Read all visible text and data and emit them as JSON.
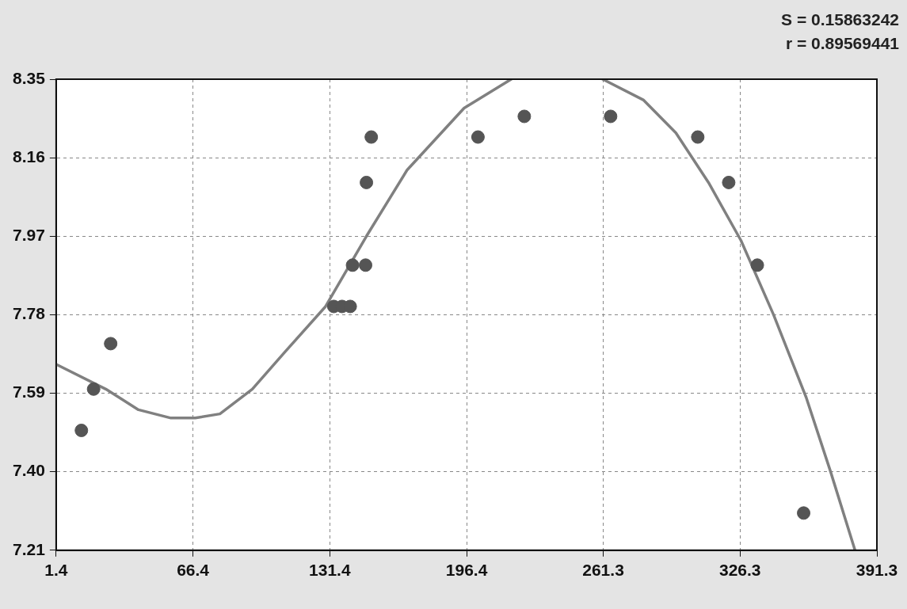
{
  "chart_data": {
    "type": "scatter",
    "annotations": [
      "S = 0.15863242",
      "r = 0.89569441"
    ],
    "xlim": [
      1.4,
      391.3
    ],
    "xticks": [
      1.4,
      66.4,
      131.4,
      196.4,
      261.3,
      326.3,
      391.3
    ],
    "ylim": [
      7.21,
      8.35
    ],
    "yticks": [
      7.21,
      {
        "value": 7.4,
        "label": "7.40"
      },
      7.59,
      7.78,
      7.97,
      8.16,
      8.35
    ],
    "grid": true,
    "series": [
      {
        "marker": "circle",
        "color": "#555555",
        "x": [
          13.4,
          19.2,
          27.3,
          133.3,
          137.2,
          141.1,
          142.2,
          148.4,
          148.8,
          151.1,
          201.8,
          223.8,
          264.8,
          306.2,
          320.9,
          334.5,
          356.5
        ],
        "values": [
          7.5,
          7.6,
          7.71,
          7.8,
          7.8,
          7.8,
          7.9,
          7.9,
          8.1,
          8.21,
          8.21,
          8.26,
          8.26,
          8.21,
          8.1,
          7.9,
          7.3
        ]
      },
      {
        "type": "line",
        "marker": "none",
        "color": "#808080",
        "line_style": "solid",
        "x": [
          1.4,
          25,
          40.5,
          55.9,
          67.5,
          79.2,
          94.6,
          110.1,
          129.4,
          148.8,
          168.1,
          195.2,
          217.6,
          240,
          261.0,
          280.3,
          295.8,
          311.3,
          326.7,
          342.2,
          357.7,
          369.3,
          380.9
        ],
        "values": [
          7.66,
          7.6,
          7.55,
          7.53,
          7.53,
          7.54,
          7.6,
          7.69,
          7.8,
          7.97,
          8.13,
          8.28,
          8.35,
          null,
          8.35,
          8.3,
          8.22,
          8.1,
          7.96,
          7.78,
          7.58,
          7.4,
          7.21
        ]
      }
    ]
  }
}
